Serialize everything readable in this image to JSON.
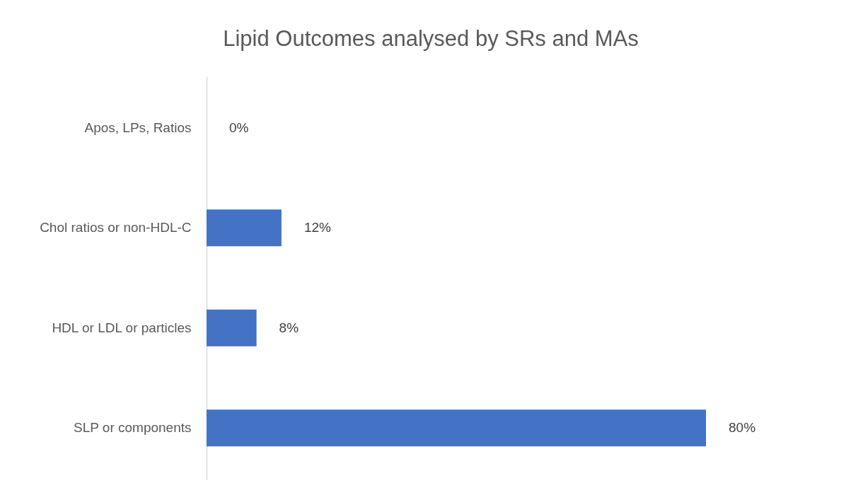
{
  "chart_data": {
    "type": "bar",
    "orientation": "horizontal",
    "title": "Lipid Outcomes analysed by SRs and MAs",
    "categories": [
      "Apos, LPs, Ratios",
      "Chol ratios or non-HDL-C",
      "HDL or LDL or particles",
      "SLP or components"
    ],
    "values": [
      0,
      12,
      8,
      80
    ],
    "color": "#4472c4",
    "value_labels": [
      "0%",
      "12%",
      "8%",
      "80%"
    ]
  }
}
